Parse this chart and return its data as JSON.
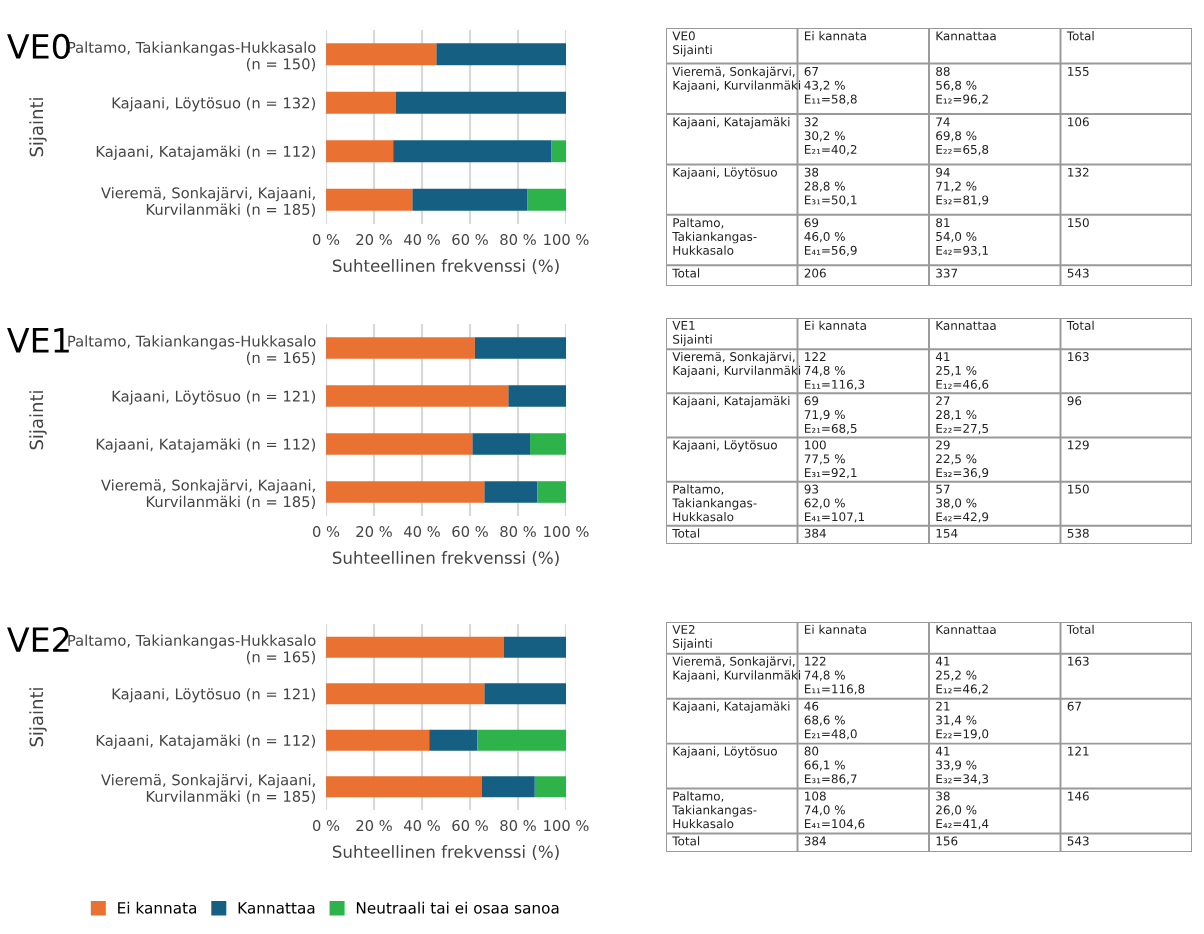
{
  "chart_data": [
    {
      "type": "bar",
      "orientation": "horizontal",
      "stacked": true,
      "title": "VE0",
      "ylabel": "Sijainti",
      "xlabel": "Suhteellinen frekvenssi (%)",
      "grid": "x",
      "categories": [
        "Paltamo, Takiankangas-Hukkasalo\n(n = 150)",
        "Kajaani, Löytösuo (n = 132)",
        "Kajaani, Katajamäki (n = 112)",
        "Vieremä, Sonkajärvi, Kajaani,\nKurvilanmäki (n = 185)"
      ],
      "xlim": [
        0,
        100
      ],
      "xticks": [
        {
          "value": 0,
          "label": "0 %"
        },
        {
          "value": 20,
          "label": "20 %"
        },
        {
          "value": 40,
          "label": "40 %"
        },
        {
          "value": 60,
          "label": "60 %"
        },
        {
          "value": 80,
          "label": "80 %"
        },
        {
          "value": 100,
          "label": "100 %"
        }
      ],
      "series": [
        {
          "color": "#e97132",
          "values": [
            46,
            29,
            28,
            36
          ]
        },
        {
          "color": "#156082",
          "values": [
            54,
            71,
            66,
            48
          ]
        },
        {
          "color": "#2db34a",
          "values": [
            0,
            0,
            6,
            16
          ]
        }
      ]
    },
    {
      "type": "other",
      "categories": [
        "VE0\nSijainti",
        "Ei kannata",
        "Kannattaa",
        "Total"
      ],
      "cell_labels": [
        [
          "Vieremä, Sonkajärvi,\nKajaani, Kurvilanmäki",
          "67\n43,2 %\nE₁₁=58,8",
          "88\n56,8 %\nE₁₂=96,2",
          "155"
        ],
        [
          "Kajaani, Katajamäki",
          "32\n30,2 %\nE₂₁=40,2",
          "74\n69,8 %\nE₂₂=65,8",
          "106"
        ],
        [
          "Kajaani, Löytösuo",
          "38\n28,8 %\nE₃₁=50,1",
          "94\n71,2 %\nE₃₂=81,9",
          "132"
        ],
        [
          "Paltamo,\nTakiankangas-\nHukkasalo",
          "69\n46,0 %\nE₄₁=56,9",
          "81\n54,0 %\nE₄₂=93,1",
          "150"
        ],
        [
          "Total",
          "206",
          "337",
          "543"
        ]
      ]
    },
    {
      "type": "bar",
      "orientation": "horizontal",
      "stacked": true,
      "title": "VE1",
      "ylabel": "Sijainti",
      "xlabel": "Suhteellinen frekvenssi (%)",
      "grid": "x",
      "categories": [
        "Paltamo, Takiankangas-Hukkasalo\n(n = 165)",
        "Kajaani, Löytösuo (n = 121)",
        "Kajaani, Katajamäki (n = 112)",
        "Vieremä, Sonkajärvi, Kajaani,\nKurvilanmäki (n = 185)"
      ],
      "xlim": [
        0,
        100
      ],
      "xticks": [
        {
          "value": 0,
          "label": "0 %"
        },
        {
          "value": 20,
          "label": "20 %"
        },
        {
          "value": 40,
          "label": "40 %"
        },
        {
          "value": 60,
          "label": "60 %"
        },
        {
          "value": 80,
          "label": "80 %"
        },
        {
          "value": 100,
          "label": "100 %"
        }
      ],
      "series": [
        {
          "color": "#e97132",
          "values": [
            62,
            76,
            61,
            66
          ]
        },
        {
          "color": "#156082",
          "values": [
            38,
            24,
            24,
            22
          ]
        },
        {
          "color": "#2db34a",
          "values": [
            0,
            0,
            15,
            12
          ]
        }
      ]
    },
    {
      "type": "other",
      "categories": [
        "VE1\nSijainti",
        "Ei kannata",
        "Kannattaa",
        "Total"
      ],
      "cell_labels": [
        [
          "Vieremä, Sonkajärvi,\nKajaani, Kurvilanmäki",
          "122\n74,8 %\nE₁₁=116,3",
          "41\n25,1 %\nE₁₂=46,6",
          "163"
        ],
        [
          "Kajaani, Katajamäki",
          "69\n71,9 %\nE₂₁=68,5",
          "27\n28,1 %\nE₂₂=27,5",
          "96"
        ],
        [
          "Kajaani, Löytösuo",
          "100\n77,5 %\nE₃₁=92,1",
          "29\n22,5 %\nE₃₂=36,9",
          "129"
        ],
        [
          "Paltamo,\nTakiankangas-\nHukkasalo",
          "93\n62,0 %\nE₄₁=107,1",
          "57\n38,0 %\nE₄₂=42,9",
          "150"
        ],
        [
          "Total",
          "384",
          "154",
          "538"
        ]
      ]
    },
    {
      "type": "bar",
      "orientation": "horizontal",
      "stacked": true,
      "title": "VE2",
      "ylabel": "Sijainti",
      "xlabel": "Suhteellinen frekvenssi (%)",
      "grid": "x",
      "legend": "bottom",
      "categories": [
        "Paltamo, Takiankangas-Hukkasalo\n(n = 165)",
        "Kajaani, Löytösuo (n = 121)",
        "Kajaani, Katajamäki (n = 112)",
        "Vieremä, Sonkajärvi, Kajaani,\nKurvilanmäki (n = 185)"
      ],
      "xlim": [
        0,
        100
      ],
      "xticks": [
        {
          "value": 0,
          "label": "0 %"
        },
        {
          "value": 20,
          "label": "20 %"
        },
        {
          "value": 40,
          "label": "40 %"
        },
        {
          "value": 60,
          "label": "60 %"
        },
        {
          "value": 80,
          "label": "80 %"
        },
        {
          "value": 100,
          "label": "100 %"
        }
      ],
      "series": [
        {
          "name": "Ei kannata",
          "color": "#e97132",
          "values": [
            74,
            66,
            43,
            65
          ]
        },
        {
          "name": "Kannattaa",
          "color": "#156082",
          "values": [
            26,
            34,
            20,
            22
          ]
        },
        {
          "name": "Neutraali tai ei osaa sanoa",
          "color": "#2db34a",
          "values": [
            0,
            0,
            37,
            13
          ]
        }
      ]
    },
    {
      "type": "other",
      "categories": [
        "VE2\nSijainti",
        "Ei kannata",
        "Kannattaa",
        "Total"
      ],
      "cell_labels": [
        [
          "Vieremä, Sonkajärvi,\nKajaani, Kurvilanmäki",
          "122\n74,8 %\nE₁₁=116,8",
          "41\n25,2 %\nE₁₂=46,2",
          "163"
        ],
        [
          "Kajaani, Katajamäki",
          "46\n68,6 %\nE₂₁=48,0",
          "21\n31,4 %\nE₂₂=19,0",
          "67"
        ],
        [
          "Kajaani, Löytösuo",
          "80\n66,1 %\nE₃₁=86,7",
          "41\n33,9 %\nE₃₂=34,3",
          "121"
        ],
        [
          "Paltamo,\nTakiankangas-\nHukkasalo",
          "108\n74,0 %\nE₄₁=104,6",
          "38\n26,0 %\nE₄₂=41,4",
          "146"
        ],
        [
          "Total",
          "384",
          "156",
          "543"
        ]
      ]
    }
  ]
}
